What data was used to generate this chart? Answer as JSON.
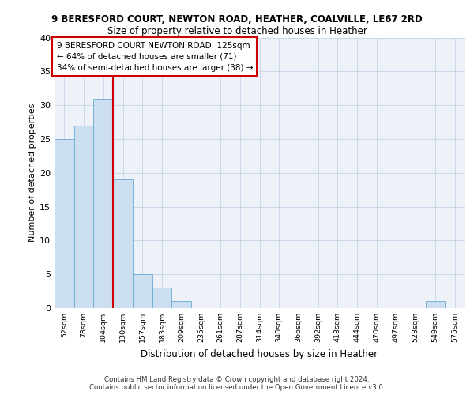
{
  "title1": "9 BERESFORD COURT, NEWTON ROAD, HEATHER, COALVILLE, LE67 2RD",
  "title2": "Size of property relative to detached houses in Heather",
  "xlabel": "Distribution of detached houses by size in Heather",
  "ylabel": "Number of detached properties",
  "categories": [
    "52sqm",
    "78sqm",
    "104sqm",
    "130sqm",
    "157sqm",
    "183sqm",
    "209sqm",
    "235sqm",
    "261sqm",
    "287sqm",
    "314sqm",
    "340sqm",
    "366sqm",
    "392sqm",
    "418sqm",
    "444sqm",
    "470sqm",
    "497sqm",
    "523sqm",
    "549sqm",
    "575sqm"
  ],
  "values": [
    25,
    27,
    31,
    19,
    5,
    3,
    1,
    0,
    0,
    0,
    0,
    0,
    0,
    0,
    0,
    0,
    0,
    0,
    0,
    1,
    0
  ],
  "bar_color": "#ccdff0",
  "bar_edge_color": "#6aaad4",
  "grid_color": "#c8d8ea",
  "red_line_x": 3.0,
  "red_line_color": "#cc0000",
  "annotation_text": "9 BERESFORD COURT NEWTON ROAD: 125sqm\n← 64% of detached houses are smaller (71)\n34% of semi-detached houses are larger (38) →",
  "annotation_box_color": "#ffffff",
  "annotation_box_edge_color": "#cc0000",
  "footer1": "Contains HM Land Registry data © Crown copyright and database right 2024.",
  "footer2": "Contains public sector information licensed under the Open Government Licence v3.0.",
  "ylim": [
    0,
    40
  ],
  "yticks": [
    0,
    5,
    10,
    15,
    20,
    25,
    30,
    35,
    40
  ],
  "background_color": "#eef2f8"
}
